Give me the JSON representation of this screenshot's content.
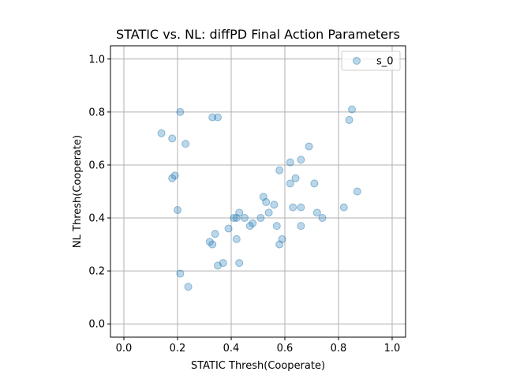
{
  "chart_data": {
    "type": "scatter",
    "title": "STATIC vs. NL: diffPD Final Action Parameters",
    "xlabel": "STATIC Thresh(Cooperate)",
    "ylabel": "NL Thresh(Cooperate)",
    "xlim": [
      -0.05,
      1.05
    ],
    "ylim": [
      -0.05,
      1.05
    ],
    "xticks": [
      "0.0",
      "0.2",
      "0.4",
      "0.6",
      "0.8",
      "1.0"
    ],
    "yticks": [
      "0.0",
      "0.2",
      "0.4",
      "0.6",
      "0.8",
      "1.0"
    ],
    "grid": true,
    "legend_position": "top-right",
    "series": [
      {
        "name": "s_0",
        "color": "#1f77b4",
        "alpha": 0.3,
        "x": [
          0.21,
          0.33,
          0.35,
          0.14,
          0.18,
          0.23,
          0.19,
          0.18,
          0.2,
          0.85,
          0.84,
          0.69,
          0.66,
          0.62,
          0.58,
          0.64,
          0.62,
          0.71,
          0.87,
          0.82,
          0.72,
          0.74,
          0.66,
          0.63,
          0.52,
          0.53,
          0.56,
          0.54,
          0.51,
          0.43,
          0.45,
          0.42,
          0.41,
          0.39,
          0.48,
          0.47,
          0.57,
          0.66,
          0.59,
          0.58,
          0.42,
          0.34,
          0.32,
          0.33,
          0.37,
          0.35,
          0.43,
          0.21,
          0.24
        ],
        "y": [
          0.8,
          0.78,
          0.78,
          0.72,
          0.7,
          0.68,
          0.56,
          0.55,
          0.43,
          0.81,
          0.77,
          0.67,
          0.62,
          0.61,
          0.58,
          0.55,
          0.53,
          0.53,
          0.5,
          0.44,
          0.42,
          0.4,
          0.44,
          0.44,
          0.48,
          0.46,
          0.45,
          0.42,
          0.4,
          0.42,
          0.4,
          0.4,
          0.4,
          0.36,
          0.38,
          0.37,
          0.37,
          0.37,
          0.32,
          0.3,
          0.32,
          0.34,
          0.31,
          0.3,
          0.23,
          0.22,
          0.23,
          0.19,
          0.14
        ]
      }
    ]
  }
}
